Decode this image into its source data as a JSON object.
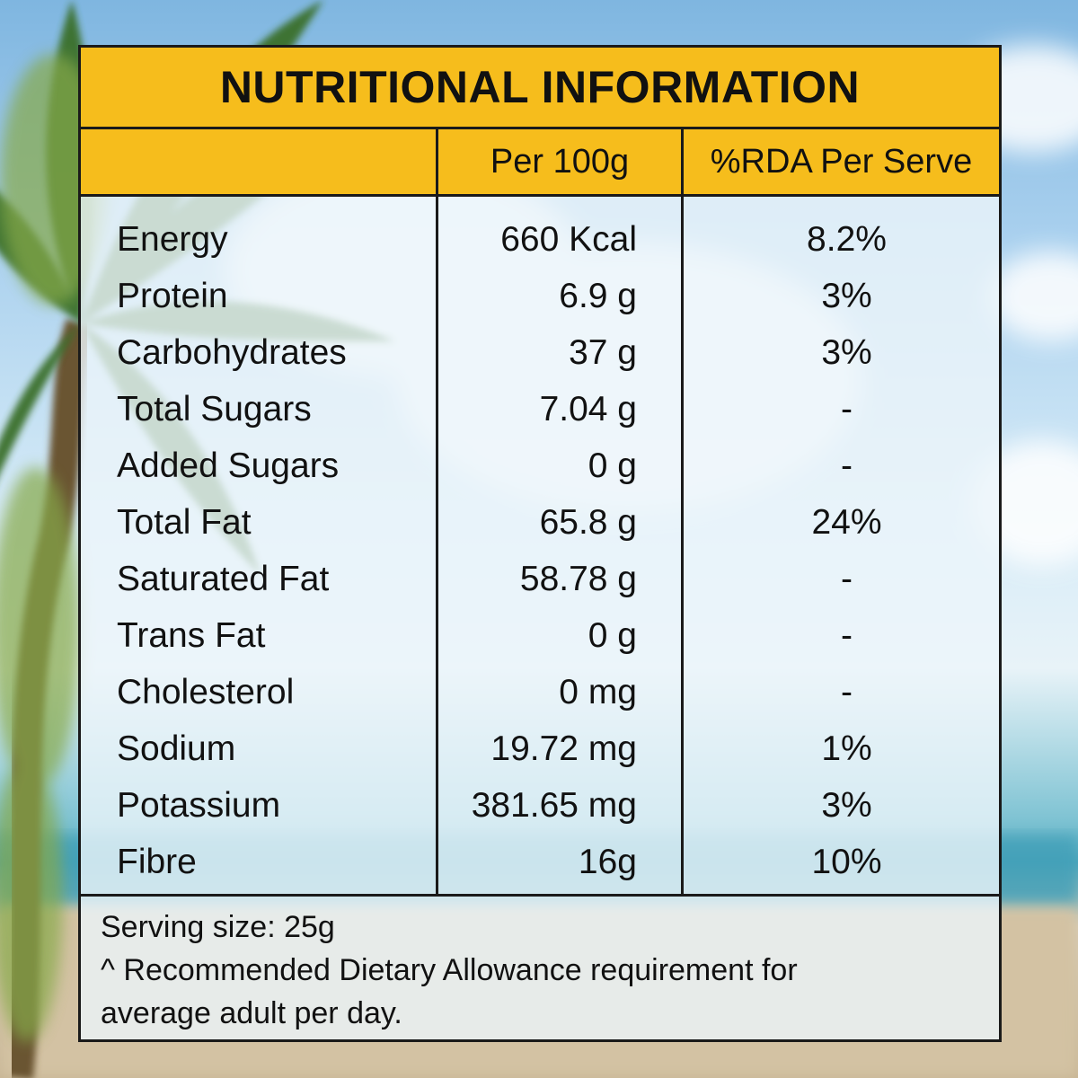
{
  "title": "NUTRITIONAL INFORMATION",
  "columns": {
    "nutrient": "",
    "per_100g": "Per 100g",
    "rda_per_serve": "%RDA Per Serve"
  },
  "rows": [
    {
      "name": "Energy",
      "per_100g": "660 Kcal",
      "rda": "8.2%"
    },
    {
      "name": "Protein",
      "per_100g": "6.9 g",
      "rda": "3%"
    },
    {
      "name": "Carbohydrates",
      "per_100g": "37 g",
      "rda": "3%"
    },
    {
      "name": "Total Sugars",
      "per_100g": "7.04 g",
      "rda": "-"
    },
    {
      "name": "Added Sugars",
      "per_100g": "0 g",
      "rda": "-"
    },
    {
      "name": "Total Fat",
      "per_100g": "65.8 g",
      "rda": "24%"
    },
    {
      "name": "Saturated Fat",
      "per_100g": "58.78 g",
      "rda": "-"
    },
    {
      "name": "Trans Fat",
      "per_100g": "0 g",
      "rda": "-"
    },
    {
      "name": "Cholesterol",
      "per_100g": "0 mg",
      "rda": "-"
    },
    {
      "name": "Sodium",
      "per_100g": "19.72 mg",
      "rda": "1%"
    },
    {
      "name": "Potassium",
      "per_100g": "381.65 mg",
      "rda": "3%"
    },
    {
      "name": "Fibre",
      "per_100g": "16g",
      "rda": "10%"
    }
  ],
  "footer": {
    "serving_size": "Serving size: 25g",
    "note_line1": "^ Recommended Dietary Allowance requirement for",
    "note_line2": "average adult per day."
  },
  "colors": {
    "header_yellow": "#f6bd1c",
    "border": "#1a1a1a",
    "panel_bg": "#ecf5fa"
  }
}
